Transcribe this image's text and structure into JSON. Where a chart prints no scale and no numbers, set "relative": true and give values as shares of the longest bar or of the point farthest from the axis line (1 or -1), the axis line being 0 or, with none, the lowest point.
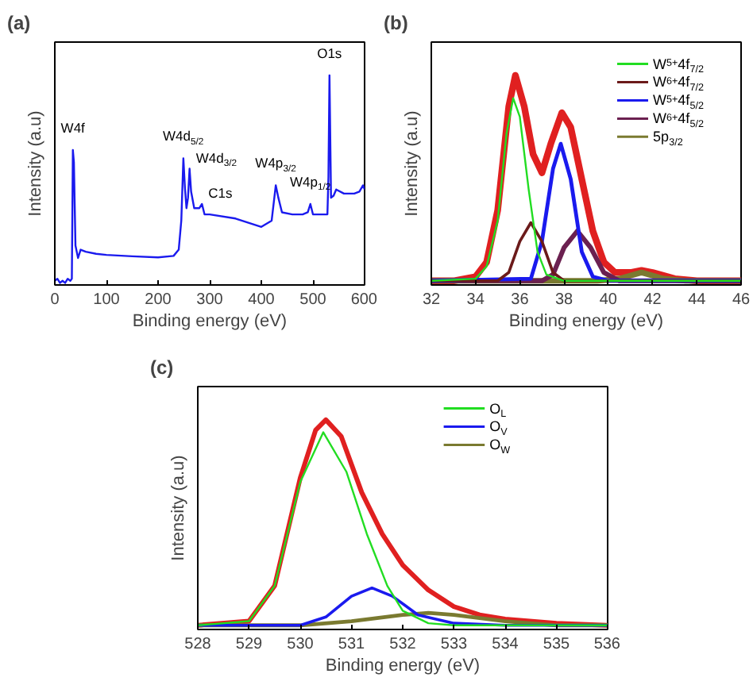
{
  "chart_data": [
    {
      "type": "line",
      "title": "(a)",
      "xlabel": "Binding energy (eV)",
      "ylabel": "Intensity (a.u)",
      "relative": true,
      "xlim": [
        0,
        600
      ],
      "xticks": [
        0,
        100,
        200,
        300,
        400,
        500,
        600
      ],
      "grid": false,
      "legend": false,
      "marker": "none",
      "series": [
        {
          "color": "#1a1aee",
          "x": [
            0,
            5,
            10,
            15,
            20,
            25,
            30,
            33,
            35,
            37,
            40,
            45,
            50,
            60,
            80,
            100,
            150,
            200,
            230,
            240,
            245,
            249,
            252,
            255,
            258,
            261,
            264,
            270,
            280,
            285,
            290,
            300,
            350,
            400,
            420,
            428,
            433,
            440,
            460,
            480,
            490,
            495,
            500,
            520,
            528,
            530,
            532,
            535,
            540,
            545,
            560,
            580,
            590,
            597,
            600
          ],
          "values": [
            0.01,
            0.02,
            0,
            0.01,
            0,
            0.02,
            0.01,
            0.02,
            0.64,
            0.58,
            0.18,
            0.12,
            0.16,
            0.15,
            0.14,
            0.135,
            0.128,
            0.123,
            0.13,
            0.16,
            0.3,
            0.6,
            0.46,
            0.36,
            0.41,
            0.55,
            0.44,
            0.36,
            0.36,
            0.38,
            0.33,
            0.33,
            0.31,
            0.27,
            0.3,
            0.47,
            0.41,
            0.34,
            0.33,
            0.33,
            0.34,
            0.38,
            0.33,
            0.33,
            0.33,
            0.51,
            1.0,
            0.41,
            0.42,
            0.45,
            0.43,
            0.43,
            0.44,
            0.47,
            0.45
          ]
        }
      ],
      "annotations": [
        {
          "text": "W4f",
          "x": 35,
          "y": 0.64
        },
        {
          "text": "W4d$_{5/2}$",
          "x": 249,
          "y": 0.6
        },
        {
          "text": "W4d$_{3/2}$",
          "x": 261,
          "y": 0.55
        },
        {
          "text": "C1s",
          "x": 285,
          "y": 0.38
        },
        {
          "text": "W4p$_{3/2}$",
          "x": 428,
          "y": 0.47
        },
        {
          "text": "W4p$_{1/2}$",
          "x": 495,
          "y": 0.38
        },
        {
          "text": "O1s",
          "x": 532,
          "y": 1.0
        }
      ]
    },
    {
      "type": "line",
      "title": "(b)",
      "xlabel": "Binding energy (eV)",
      "ylabel": "Intensity (a.u)",
      "relative": true,
      "xlim": [
        32,
        46
      ],
      "xticks": [
        32,
        34,
        36,
        38,
        40,
        42,
        44,
        46
      ],
      "grid": false,
      "legend": "top right",
      "marker": "none",
      "series": [
        {
          "name": "W$^{5+}$4f$_{7/2}$",
          "color": "#22dd22",
          "x": [
            32,
            34,
            34.5,
            35,
            35.4,
            35.7,
            36,
            36.4,
            36.8,
            37.2,
            38,
            46
          ],
          "values": [
            0.01,
            0.02,
            0.08,
            0.3,
            0.72,
            0.89,
            0.8,
            0.45,
            0.15,
            0.04,
            0.01,
            0.01
          ]
        },
        {
          "name": "W$^{6+}$4f$_{7/2}$",
          "color": "#6b1a1a",
          "x": [
            32,
            35,
            35.5,
            36,
            36.5,
            37,
            37.5,
            38,
            46
          ],
          "values": [
            0.01,
            0.01,
            0.05,
            0.2,
            0.29,
            0.2,
            0.05,
            0.01,
            0.01
          ]
        },
        {
          "name": "W$^{5+}$4f$_{5/2}$",
          "color": "#1a1aee",
          "x": [
            32,
            36.5,
            37,
            37.5,
            37.85,
            38.3,
            38.8,
            39.3,
            40,
            46
          ],
          "values": [
            0.01,
            0.02,
            0.2,
            0.55,
            0.67,
            0.5,
            0.15,
            0.03,
            0.01,
            0.01
          ]
        },
        {
          "name": "W$^{6+}$4f$_{5/2}$",
          "color": "#6b2050",
          "x": [
            32,
            37,
            37.5,
            38,
            38.6,
            39.2,
            39.8,
            40.5,
            46
          ],
          "values": [
            0.01,
            0.01,
            0.04,
            0.17,
            0.25,
            0.17,
            0.05,
            0.01,
            0.01
          ]
        },
        {
          "name": "5p$_{3/2}$",
          "color": "#7a7a30",
          "x": [
            32,
            39.5,
            40.5,
            41.5,
            42.5,
            43.5,
            46
          ],
          "values": [
            0.01,
            0.01,
            0.02,
            0.05,
            0.02,
            0.01,
            0.01
          ]
        },
        {
          "color": "#e02020",
          "x": [
            32,
            33,
            34,
            34.5,
            35,
            35.5,
            35.8,
            36.2,
            36.6,
            37,
            37.4,
            37.9,
            38.3,
            38.8,
            39.3,
            39.8,
            40.3,
            41,
            41.5,
            42,
            43,
            44,
            46
          ],
          "values": [
            0.01,
            0.01,
            0.03,
            0.1,
            0.35,
            0.85,
            1.0,
            0.85,
            0.62,
            0.53,
            0.67,
            0.82,
            0.75,
            0.5,
            0.25,
            0.1,
            0.05,
            0.05,
            0.06,
            0.05,
            0.02,
            0.01,
            0.01
          ]
        }
      ]
    },
    {
      "type": "line",
      "title": "(c)",
      "xlabel": "Binding energy (eV)",
      "ylabel": "Intensity (a.u)",
      "relative": true,
      "xlim": [
        528,
        536
      ],
      "xticks": [
        528,
        529,
        530,
        531,
        532,
        533,
        534,
        535,
        536
      ],
      "grid": false,
      "legend": "top right",
      "marker": "none",
      "series": [
        {
          "name": "O$_{L}$",
          "color": "#22dd22",
          "x": [
            528,
            529,
            529.5,
            530,
            530.45,
            530.9,
            531.3,
            531.7,
            532,
            532.5,
            533,
            536
          ],
          "values": [
            0.01,
            0.03,
            0.2,
            0.7,
            0.94,
            0.75,
            0.45,
            0.2,
            0.08,
            0.02,
            0.01,
            0.01
          ]
        },
        {
          "name": "O$_{V}$",
          "color": "#1a1aee",
          "x": [
            528,
            530,
            530.5,
            531,
            531.4,
            531.8,
            532.3,
            533,
            534,
            536
          ],
          "values": [
            0.01,
            0.01,
            0.05,
            0.15,
            0.19,
            0.15,
            0.06,
            0.02,
            0.01,
            0.01
          ]
        },
        {
          "name": "O$_{W}$",
          "color": "#7a7a30",
          "x": [
            528,
            530,
            531,
            532,
            532.5,
            533,
            534,
            535,
            536
          ],
          "values": [
            0.01,
            0.01,
            0.03,
            0.06,
            0.07,
            0.06,
            0.03,
            0.01,
            0.01
          ]
        },
        {
          "color": "#e02020",
          "x": [
            528,
            529,
            529.5,
            530,
            530.3,
            530.5,
            530.8,
            531.2,
            531.6,
            532,
            532.5,
            533,
            533.5,
            534,
            535,
            536
          ],
          "values": [
            0.01,
            0.03,
            0.2,
            0.72,
            0.95,
            1.0,
            0.92,
            0.65,
            0.45,
            0.3,
            0.18,
            0.1,
            0.06,
            0.04,
            0.02,
            0.01
          ]
        }
      ]
    }
  ]
}
